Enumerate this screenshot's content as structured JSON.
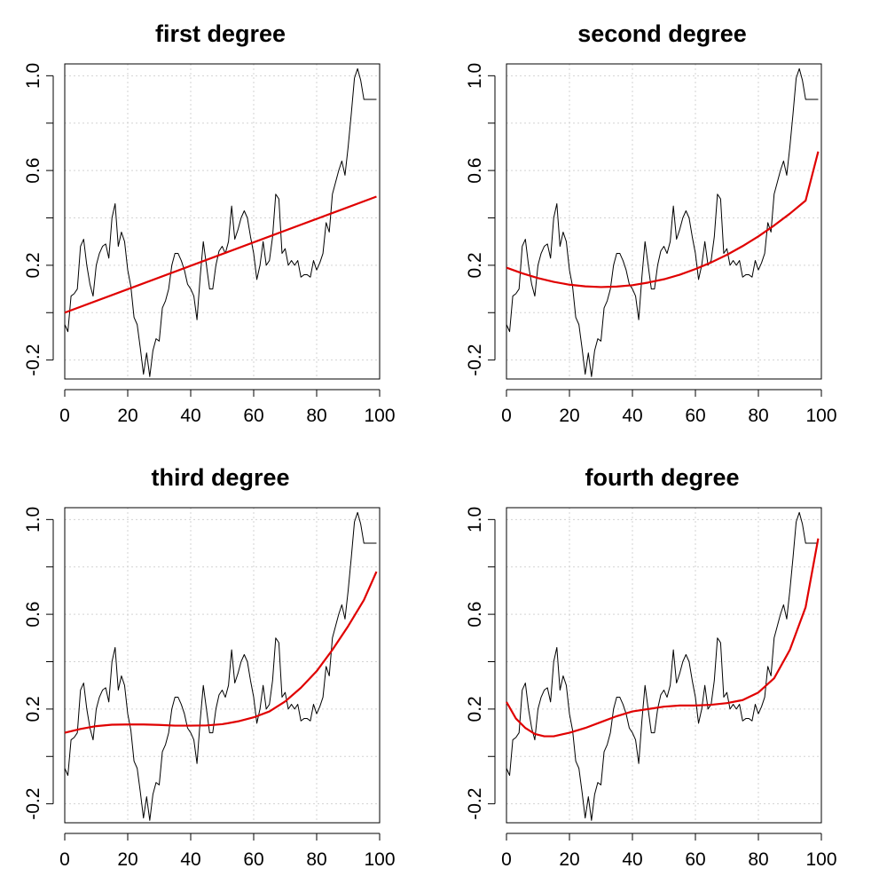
{
  "chart_data": [
    {
      "type": "line",
      "title": "first degree",
      "xlim": [
        0,
        100
      ],
      "ylim": [
        -0.28,
        1.05
      ],
      "xticks": [
        0,
        20,
        40,
        60,
        80,
        100
      ],
      "yticks": [
        -0.2,
        0.2,
        0.6,
        1.0
      ],
      "ytick_labels": [
        "-0.2",
        "0.2",
        "0.6",
        "1.0"
      ],
      "grid": true,
      "series": [
        {
          "role": "observed",
          "color": "#000000",
          "x": [
            0,
            1,
            2,
            3,
            4,
            5,
            6,
            7,
            8,
            9,
            10,
            11,
            12,
            13,
            14,
            15,
            16,
            17,
            18,
            19,
            20,
            21,
            22,
            23,
            24,
            25,
            26,
            27,
            28,
            29,
            30,
            31,
            32,
            33,
            34,
            35,
            36,
            37,
            38,
            39,
            40,
            41,
            42,
            43,
            44,
            45,
            46,
            47,
            48,
            49,
            50,
            51,
            52,
            53,
            54,
            55,
            56,
            57,
            58,
            59,
            60,
            61,
            62,
            63,
            64,
            65,
            66,
            67,
            68,
            69,
            70,
            71,
            72,
            73,
            74,
            75,
            76,
            77,
            78,
            79,
            80,
            81,
            82,
            83,
            84,
            85,
            86,
            87,
            88,
            89,
            90,
            91,
            92,
            93,
            94,
            95,
            96,
            97,
            98,
            99
          ],
          "y": [
            -0.05,
            -0.08,
            0.07,
            0.08,
            0.1,
            0.28,
            0.31,
            0.2,
            0.12,
            0.07,
            0.2,
            0.25,
            0.28,
            0.29,
            0.23,
            0.4,
            0.46,
            0.28,
            0.34,
            0.3,
            0.18,
            0.11,
            -0.02,
            -0.05,
            -0.15,
            -0.26,
            -0.17,
            -0.27,
            -0.16,
            -0.11,
            -0.12,
            0.02,
            0.05,
            0.1,
            0.2,
            0.25,
            0.25,
            0.22,
            0.18,
            0.12,
            0.1,
            0.07,
            -0.03,
            0.15,
            0.3,
            0.2,
            0.1,
            0.1,
            0.2,
            0.26,
            0.28,
            0.25,
            0.3,
            0.45,
            0.31,
            0.35,
            0.4,
            0.43,
            0.4,
            0.32,
            0.25,
            0.14,
            0.2,
            0.3,
            0.2,
            0.22,
            0.32,
            0.5,
            0.48,
            0.25,
            0.27,
            0.2,
            0.22,
            0.2,
            0.22,
            0.15,
            0.16,
            0.16,
            0.15,
            0.22,
            0.18,
            0.21,
            0.25,
            0.38,
            0.34,
            0.5,
            0.55,
            0.6,
            0.64,
            0.58,
            0.7,
            0.84,
            0.99,
            1.03,
            0.98,
            0.9,
            0.9,
            0.9,
            0.9,
            0.9
          ]
        },
        {
          "role": "fit",
          "color": "#e00000",
          "x": [
            0,
            99
          ],
          "y": [
            0.0,
            0.49
          ]
        }
      ]
    },
    {
      "type": "line",
      "title": "second degree",
      "xlim": [
        0,
        100
      ],
      "ylim": [
        -0.28,
        1.05
      ],
      "xticks": [
        0,
        20,
        40,
        60,
        80,
        100
      ],
      "yticks": [
        -0.2,
        0.2,
        0.6,
        1.0
      ],
      "ytick_labels": [
        "-0.2",
        "0.2",
        "0.6",
        "1.0"
      ],
      "grid": true,
      "series": [
        {
          "role": "observed",
          "color": "#000000",
          "x": [
            0,
            1,
            2,
            3,
            4,
            5,
            6,
            7,
            8,
            9,
            10,
            11,
            12,
            13,
            14,
            15,
            16,
            17,
            18,
            19,
            20,
            21,
            22,
            23,
            24,
            25,
            26,
            27,
            28,
            29,
            30,
            31,
            32,
            33,
            34,
            35,
            36,
            37,
            38,
            39,
            40,
            41,
            42,
            43,
            44,
            45,
            46,
            47,
            48,
            49,
            50,
            51,
            52,
            53,
            54,
            55,
            56,
            57,
            58,
            59,
            60,
            61,
            62,
            63,
            64,
            65,
            66,
            67,
            68,
            69,
            70,
            71,
            72,
            73,
            74,
            75,
            76,
            77,
            78,
            79,
            80,
            81,
            82,
            83,
            84,
            85,
            86,
            87,
            88,
            89,
            90,
            91,
            92,
            93,
            94,
            95,
            96,
            97,
            98,
            99
          ],
          "y": [
            -0.05,
            -0.08,
            0.07,
            0.08,
            0.1,
            0.28,
            0.31,
            0.2,
            0.12,
            0.07,
            0.2,
            0.25,
            0.28,
            0.29,
            0.23,
            0.4,
            0.46,
            0.28,
            0.34,
            0.3,
            0.18,
            0.11,
            -0.02,
            -0.05,
            -0.15,
            -0.26,
            -0.17,
            -0.27,
            -0.16,
            -0.11,
            -0.12,
            0.02,
            0.05,
            0.1,
            0.2,
            0.25,
            0.25,
            0.22,
            0.18,
            0.12,
            0.1,
            0.07,
            -0.03,
            0.15,
            0.3,
            0.2,
            0.1,
            0.1,
            0.2,
            0.26,
            0.28,
            0.25,
            0.3,
            0.45,
            0.31,
            0.35,
            0.4,
            0.43,
            0.4,
            0.32,
            0.25,
            0.14,
            0.2,
            0.3,
            0.2,
            0.22,
            0.32,
            0.5,
            0.48,
            0.25,
            0.27,
            0.2,
            0.22,
            0.2,
            0.22,
            0.15,
            0.16,
            0.16,
            0.15,
            0.22,
            0.18,
            0.21,
            0.25,
            0.38,
            0.34,
            0.5,
            0.55,
            0.6,
            0.64,
            0.58,
            0.7,
            0.84,
            0.99,
            1.03,
            0.98,
            0.9,
            0.9,
            0.9,
            0.9,
            0.9
          ]
        },
        {
          "role": "fit",
          "color": "#e00000",
          "x": [
            0,
            5,
            10,
            15,
            20,
            25,
            30,
            35,
            40,
            45,
            50,
            55,
            60,
            65,
            70,
            75,
            80,
            85,
            90,
            95,
            99
          ],
          "y": [
            0.19,
            0.166,
            0.146,
            0.13,
            0.118,
            0.111,
            0.108,
            0.11,
            0.116,
            0.127,
            0.141,
            0.16,
            0.184,
            0.212,
            0.244,
            0.281,
            0.322,
            0.368,
            0.418,
            0.473,
            0.68
          ]
        }
      ]
    },
    {
      "type": "line",
      "title": "third degree",
      "xlim": [
        0,
        100
      ],
      "ylim": [
        -0.28,
        1.05
      ],
      "xticks": [
        0,
        20,
        40,
        60,
        80,
        100
      ],
      "yticks": [
        -0.2,
        0.2,
        0.6,
        1.0
      ],
      "ytick_labels": [
        "-0.2",
        "0.2",
        "0.6",
        "1.0"
      ],
      "grid": true,
      "series": [
        {
          "role": "observed",
          "color": "#000000",
          "x": [
            0,
            1,
            2,
            3,
            4,
            5,
            6,
            7,
            8,
            9,
            10,
            11,
            12,
            13,
            14,
            15,
            16,
            17,
            18,
            19,
            20,
            21,
            22,
            23,
            24,
            25,
            26,
            27,
            28,
            29,
            30,
            31,
            32,
            33,
            34,
            35,
            36,
            37,
            38,
            39,
            40,
            41,
            42,
            43,
            44,
            45,
            46,
            47,
            48,
            49,
            50,
            51,
            52,
            53,
            54,
            55,
            56,
            57,
            58,
            59,
            60,
            61,
            62,
            63,
            64,
            65,
            66,
            67,
            68,
            69,
            70,
            71,
            72,
            73,
            74,
            75,
            76,
            77,
            78,
            79,
            80,
            81,
            82,
            83,
            84,
            85,
            86,
            87,
            88,
            89,
            90,
            91,
            92,
            93,
            94,
            95,
            96,
            97,
            98,
            99
          ],
          "y": [
            -0.05,
            -0.08,
            0.07,
            0.08,
            0.1,
            0.28,
            0.31,
            0.2,
            0.12,
            0.07,
            0.2,
            0.25,
            0.28,
            0.29,
            0.23,
            0.4,
            0.46,
            0.28,
            0.34,
            0.3,
            0.18,
            0.11,
            -0.02,
            -0.05,
            -0.15,
            -0.26,
            -0.17,
            -0.27,
            -0.16,
            -0.11,
            -0.12,
            0.02,
            0.05,
            0.1,
            0.2,
            0.25,
            0.25,
            0.22,
            0.18,
            0.12,
            0.1,
            0.07,
            -0.03,
            0.15,
            0.3,
            0.2,
            0.1,
            0.1,
            0.2,
            0.26,
            0.28,
            0.25,
            0.3,
            0.45,
            0.31,
            0.35,
            0.4,
            0.43,
            0.4,
            0.32,
            0.25,
            0.14,
            0.2,
            0.3,
            0.2,
            0.22,
            0.32,
            0.5,
            0.48,
            0.25,
            0.27,
            0.2,
            0.22,
            0.2,
            0.22,
            0.15,
            0.16,
            0.16,
            0.15,
            0.22,
            0.18,
            0.21,
            0.25,
            0.38,
            0.34,
            0.5,
            0.55,
            0.6,
            0.64,
            0.58,
            0.7,
            0.84,
            0.99,
            1.03,
            0.98,
            0.9,
            0.9,
            0.9,
            0.9,
            0.9
          ]
        },
        {
          "role": "fit",
          "color": "#e00000",
          "x": [
            0,
            5,
            10,
            15,
            20,
            25,
            30,
            35,
            40,
            45,
            50,
            55,
            60,
            65,
            70,
            75,
            80,
            85,
            90,
            95,
            99
          ],
          "y": [
            0.1,
            0.116,
            0.128,
            0.134,
            0.135,
            0.135,
            0.133,
            0.13,
            0.13,
            0.131,
            0.136,
            0.148,
            0.165,
            0.19,
            0.232,
            0.29,
            0.36,
            0.45,
            0.55,
            0.66,
            0.78
          ]
        }
      ]
    },
    {
      "type": "line",
      "title": "fourth degree",
      "xlim": [
        0,
        100
      ],
      "ylim": [
        -0.28,
        1.05
      ],
      "xticks": [
        0,
        20,
        40,
        60,
        80,
        100
      ],
      "yticks": [
        -0.2,
        0.2,
        0.6,
        1.0
      ],
      "ytick_labels": [
        "-0.2",
        "0.2",
        "0.6",
        "1.0"
      ],
      "grid": true,
      "series": [
        {
          "role": "observed",
          "color": "#000000",
          "x": [
            0,
            1,
            2,
            3,
            4,
            5,
            6,
            7,
            8,
            9,
            10,
            11,
            12,
            13,
            14,
            15,
            16,
            17,
            18,
            19,
            20,
            21,
            22,
            23,
            24,
            25,
            26,
            27,
            28,
            29,
            30,
            31,
            32,
            33,
            34,
            35,
            36,
            37,
            38,
            39,
            40,
            41,
            42,
            43,
            44,
            45,
            46,
            47,
            48,
            49,
            50,
            51,
            52,
            53,
            54,
            55,
            56,
            57,
            58,
            59,
            60,
            61,
            62,
            63,
            64,
            65,
            66,
            67,
            68,
            69,
            70,
            71,
            72,
            73,
            74,
            75,
            76,
            77,
            78,
            79,
            80,
            81,
            82,
            83,
            84,
            85,
            86,
            87,
            88,
            89,
            90,
            91,
            92,
            93,
            94,
            95,
            96,
            97,
            98,
            99
          ],
          "y": [
            -0.05,
            -0.08,
            0.07,
            0.08,
            0.1,
            0.28,
            0.31,
            0.2,
            0.12,
            0.07,
            0.2,
            0.25,
            0.28,
            0.29,
            0.23,
            0.4,
            0.46,
            0.28,
            0.34,
            0.3,
            0.18,
            0.11,
            -0.02,
            -0.05,
            -0.15,
            -0.26,
            -0.17,
            -0.27,
            -0.16,
            -0.11,
            -0.12,
            0.02,
            0.05,
            0.1,
            0.2,
            0.25,
            0.25,
            0.22,
            0.18,
            0.12,
            0.1,
            0.07,
            -0.03,
            0.15,
            0.3,
            0.2,
            0.1,
            0.1,
            0.2,
            0.26,
            0.28,
            0.25,
            0.3,
            0.45,
            0.31,
            0.35,
            0.4,
            0.43,
            0.4,
            0.32,
            0.25,
            0.14,
            0.2,
            0.3,
            0.2,
            0.22,
            0.32,
            0.5,
            0.48,
            0.25,
            0.27,
            0.2,
            0.22,
            0.2,
            0.22,
            0.15,
            0.16,
            0.16,
            0.15,
            0.22,
            0.18,
            0.21,
            0.25,
            0.38,
            0.34,
            0.5,
            0.55,
            0.6,
            0.64,
            0.58,
            0.7,
            0.84,
            0.99,
            1.03,
            0.98,
            0.9,
            0.9,
            0.9,
            0.9,
            0.9
          ]
        },
        {
          "role": "fit",
          "color": "#e00000",
          "x": [
            0,
            3,
            6,
            9,
            12,
            15,
            20,
            25,
            30,
            35,
            40,
            45,
            50,
            55,
            60,
            65,
            70,
            75,
            80,
            85,
            90,
            95,
            99
          ],
          "y": [
            0.23,
            0.16,
            0.12,
            0.095,
            0.085,
            0.085,
            0.1,
            0.12,
            0.145,
            0.17,
            0.19,
            0.2,
            0.21,
            0.215,
            0.215,
            0.218,
            0.225,
            0.238,
            0.27,
            0.33,
            0.45,
            0.63,
            0.92
          ]
        }
      ]
    }
  ]
}
